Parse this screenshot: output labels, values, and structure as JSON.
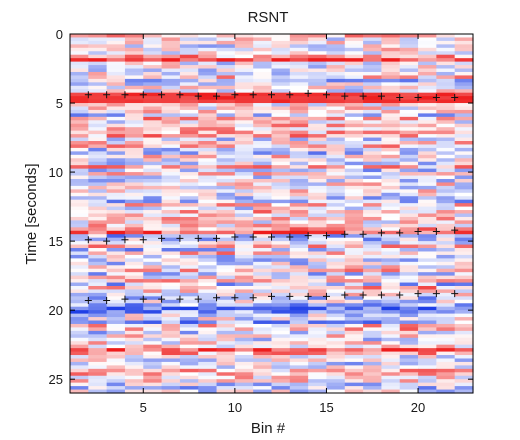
{
  "chart_data": {
    "type": "heatmap",
    "title": "RSNT",
    "xlabel": "Bin #",
    "ylabel": "Time [seconds]",
    "xlim": [
      1,
      23
    ],
    "ylim": [
      26,
      0
    ],
    "xticks": [
      5,
      10,
      15,
      20
    ],
    "yticks": [
      0,
      5,
      10,
      15,
      20,
      25
    ],
    "bins": 22,
    "time_rows": 104,
    "colormap": "blue-white-red (diverging)",
    "color_negative": "#1f3fe6",
    "color_zero": "#ffffff",
    "color_positive": "#ee1c1c",
    "marker_color": "#111111",
    "marker_style": "plus",
    "marker_series": [
      {
        "x": [
          2,
          3,
          4,
          5,
          6,
          7,
          8,
          9,
          10,
          11,
          12,
          13,
          14,
          15,
          16,
          17,
          18,
          19,
          20,
          21,
          22
        ],
        "y": [
          4.4,
          4.4,
          4.4,
          4.4,
          4.4,
          4.4,
          4.5,
          4.5,
          4.4,
          4.4,
          4.4,
          4.4,
          4.3,
          4.4,
          4.5,
          4.5,
          4.5,
          4.6,
          4.6,
          4.6,
          4.6
        ]
      },
      {
        "x": [
          2,
          3,
          4,
          5,
          6,
          7,
          8,
          9,
          10,
          11,
          12,
          13,
          14,
          15,
          16,
          17,
          18,
          19,
          20,
          21,
          22
        ],
        "y": [
          14.9,
          15.0,
          14.9,
          14.9,
          14.8,
          14.8,
          14.8,
          14.8,
          14.7,
          14.7,
          14.7,
          14.7,
          14.6,
          14.6,
          14.5,
          14.5,
          14.4,
          14.4,
          14.3,
          14.3,
          14.2
        ]
      },
      {
        "x": [
          2,
          3,
          4,
          5,
          6,
          7,
          8,
          9,
          10,
          11,
          12,
          13,
          14,
          15,
          16,
          17,
          18,
          19,
          20,
          21,
          22
        ],
        "y": [
          19.3,
          19.3,
          19.2,
          19.2,
          19.2,
          19.2,
          19.2,
          19.1,
          19.1,
          19.1,
          19.0,
          19.0,
          19.0,
          19.0,
          18.9,
          18.9,
          18.9,
          18.9,
          18.8,
          18.8,
          18.8
        ]
      }
    ],
    "bands": [
      {
        "t": 4.6,
        "width": 0.35,
        "strength": 0.85
      },
      {
        "t": 1.8,
        "width": 0.3,
        "strength": 0.55
      },
      {
        "t": 14.2,
        "width": 0.3,
        "strength": 0.5
      },
      {
        "t": 19.8,
        "width": 0.35,
        "strength": -0.6
      },
      {
        "t": 20.6,
        "width": 0.3,
        "strength": -0.45
      },
      {
        "t": 22.8,
        "width": 0.3,
        "strength": 0.4
      },
      {
        "t": 16.5,
        "width": 0.25,
        "strength": -0.4
      }
    ]
  }
}
